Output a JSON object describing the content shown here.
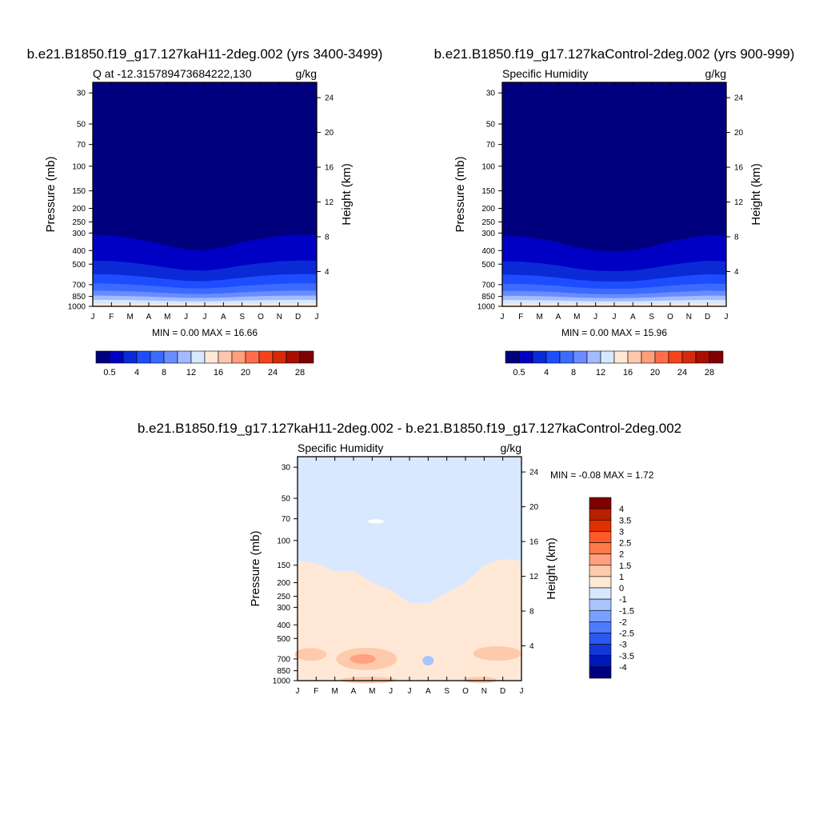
{
  "chart_data": [
    {
      "type": "heatmap",
      "panel_title": "b.e21.B1850.f19_g17.127kaH11-2deg.002 (yrs 3400-3499)",
      "left_label": "Q at -12.315789473684222,130",
      "right_label": "g/kg",
      "ylabel": "Pressure (mb)",
      "ylabel_right": "Height (km)",
      "x_ticks": [
        "J",
        "F",
        "M",
        "A",
        "M",
        "J",
        "J",
        "A",
        "S",
        "O",
        "N",
        "D",
        "J"
      ],
      "y_ticks": [
        "30",
        "50",
        "70",
        "100",
        "150",
        "200",
        "250",
        "300",
        "400",
        "500",
        "700",
        "850",
        "1000"
      ],
      "height_ticks": [
        "24",
        "20",
        "16",
        "12",
        "8",
        "4"
      ],
      "min_max_text": "MIN =   0.00 MAX =  16.66",
      "min": 0.0,
      "max": 16.66,
      "colorbar_labels": [
        "0.5",
        "4",
        "8",
        "12",
        "16",
        "20",
        "24",
        "28"
      ],
      "colorbar_colors": [
        "#00007f",
        "#0000c4",
        "#0a2ad6",
        "#1e4dff",
        "#3c6bff",
        "#6a8cff",
        "#a4bcff",
        "#d7e8ff",
        "#ffe8d6",
        "#ffc7ad",
        "#ff9f7b",
        "#ff6e4d",
        "#f5441b",
        "#d42a0a",
        "#a80f00",
        "#7f0000"
      ],
      "monthly_top_of_moist_layer_mb": [
        310,
        312,
        325,
        345,
        370,
        395,
        400,
        380,
        350,
        330,
        315,
        308,
        310
      ]
    },
    {
      "type": "heatmap",
      "panel_title": "b.e21.B1850.f19_g17.127kaControl-2deg.002 (yrs 900-999)",
      "left_label": "Specific Humidity",
      "right_label": "g/kg",
      "ylabel": "Pressure (mb)",
      "ylabel_right": "Height (km)",
      "x_ticks": [
        "J",
        "F",
        "M",
        "A",
        "M",
        "J",
        "J",
        "A",
        "S",
        "O",
        "N",
        "D",
        "J"
      ],
      "y_ticks": [
        "30",
        "50",
        "70",
        "100",
        "150",
        "200",
        "250",
        "300",
        "400",
        "500",
        "700",
        "850",
        "1000"
      ],
      "height_ticks": [
        "24",
        "20",
        "16",
        "12",
        "8",
        "4"
      ],
      "min_max_text": "MIN =   0.00 MAX =  15.96",
      "min": 0.0,
      "max": 15.96,
      "colorbar_labels": [
        "0.5",
        "4",
        "8",
        "12",
        "16",
        "20",
        "24",
        "28"
      ],
      "colorbar_colors": [
        "#00007f",
        "#0000c4",
        "#0a2ad6",
        "#1e4dff",
        "#3c6bff",
        "#6a8cff",
        "#a4bcff",
        "#d7e8ff",
        "#ffe8d6",
        "#ffc7ad",
        "#ff9f7b",
        "#ff6e4d",
        "#f5441b",
        "#d42a0a",
        "#a80f00",
        "#7f0000"
      ],
      "monthly_top_of_moist_layer_mb": [
        315,
        318,
        330,
        350,
        380,
        400,
        405,
        400,
        375,
        345,
        325,
        310,
        315
      ]
    },
    {
      "type": "heatmap",
      "panel_title": "b.e21.B1850.f19_g17.127kaH11-2deg.002 - b.e21.B1850.f19_g17.127kaControl-2deg.002",
      "left_label": "Specific Humidity",
      "right_label": "g/kg",
      "ylabel": "Pressure (mb)",
      "ylabel_right": "Height (km)",
      "x_ticks": [
        "J",
        "F",
        "M",
        "A",
        "M",
        "J",
        "J",
        "A",
        "S",
        "O",
        "N",
        "D",
        "J"
      ],
      "y_ticks": [
        "30",
        "50",
        "70",
        "100",
        "150",
        "200",
        "250",
        "300",
        "400",
        "500",
        "700",
        "850",
        "1000"
      ],
      "height_ticks": [
        "24",
        "20",
        "16",
        "12",
        "8",
        "4"
      ],
      "min_max_text": "MIN =  -0.08 MAX =   1.72",
      "min": -0.08,
      "max": 1.72,
      "colorbar_labels": [
        "4",
        "3.5",
        "3",
        "2.5",
        "2",
        "1.5",
        "1",
        "0",
        "-1",
        "-1.5",
        "-2",
        "-2.5",
        "-3",
        "-3.5",
        "-4"
      ],
      "colorbar_colors": [
        "#7f0000",
        "#b82000",
        "#e03000",
        "#ff5a28",
        "#ff7b4a",
        "#ffa07e",
        "#ffc9ac",
        "#ffe8d6",
        "#d7e8ff",
        "#a8c4ff",
        "#7aa0ff",
        "#4f7cff",
        "#2c57f0",
        "#1436d8",
        "#0019b8",
        "#00007f"
      ],
      "monthly_positive_region_top_mb": [
        140,
        145,
        165,
        165,
        200,
        225,
        280,
        280,
        235,
        200,
        150,
        135,
        140
      ]
    }
  ]
}
